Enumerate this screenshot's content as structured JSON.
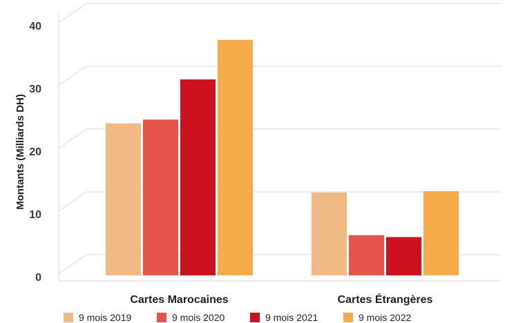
{
  "chart_data": {
    "type": "bar",
    "title": "",
    "xlabel": "",
    "ylabel": "Montants (Milliards DH)",
    "ylim": [
      0,
      45
    ],
    "yticks": [
      "0",
      "10",
      "20",
      "30",
      "40"
    ],
    "grid": true,
    "legend": "bottom",
    "categories": [
      "Cartes Marocaines",
      "Cartes Étrangères"
    ],
    "series": [
      {
        "name": "9 mois 2019",
        "color": "#f0b986",
        "values": [
          24.2,
          13.2
        ]
      },
      {
        "name": "9 mois 2020",
        "color": "#e5534b",
        "values": [
          24.8,
          6.4
        ]
      },
      {
        "name": "9 mois 2021",
        "color": "#cc1121",
        "values": [
          31.2,
          6.1
        ]
      },
      {
        "name": "9 mois 2022",
        "color": "#f7ac4b",
        "values": [
          37.5,
          13.4
        ]
      }
    ]
  }
}
